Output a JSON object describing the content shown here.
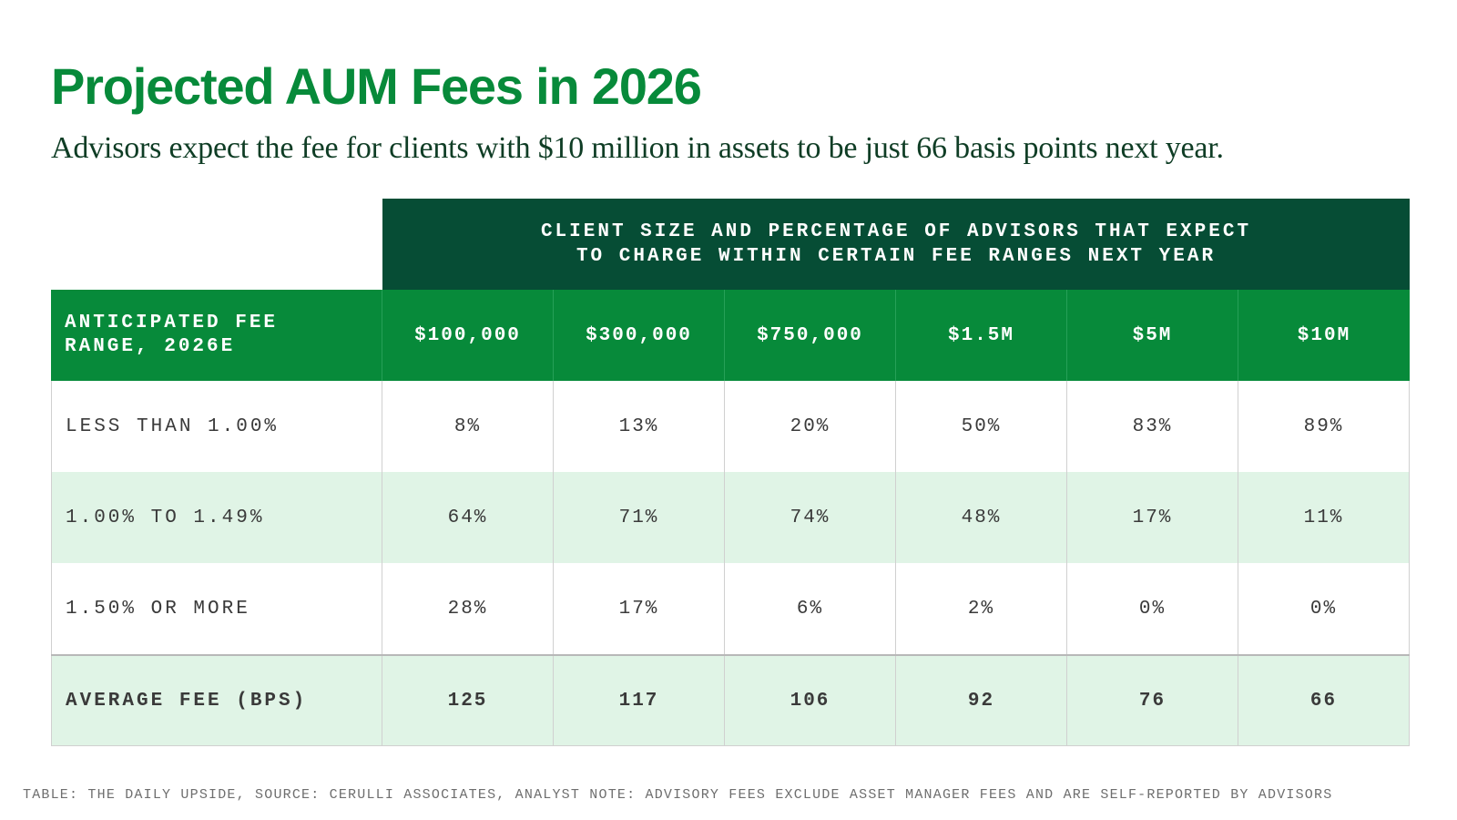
{
  "title": "Projected AUM Fees in 2026",
  "subtitle": "Advisors expect the fee for clients with $10 million in assets to be just 66 basis points next year.",
  "spanning_header": {
    "line1": "CLIENT SIZE AND PERCENTAGE OF ADVISORS THAT EXPECT",
    "line2": "TO CHARGE WITHIN CERTAIN FEE RANGES NEXT YEAR"
  },
  "row_header": {
    "line1": "ANTICIPATED FEE",
    "line2": "RANGE, 2026E"
  },
  "footer": "TABLE: THE DAILY UPSIDE, SOURCE: CERULLI ASSOCIATES, ANALYST NOTE: ADVISORY FEES EXCLUDE ASSET MANAGER FEES AND ARE SELF-REPORTED BY ADVISORS",
  "colors": {
    "title_green": "#078a3a",
    "dark_green_header": "#064d35",
    "green_header": "#078a3a",
    "alt_row": "#e0f4e6"
  },
  "chart_data": {
    "type": "table",
    "title": "Projected AUM Fees in 2026",
    "subtitle": "Advisors expect the fee for clients with $10 million in assets to be just 66 basis points next year.",
    "columns": [
      "$100,000",
      "$300,000",
      "$750,000",
      "$1.5M",
      "$5M",
      "$10M"
    ],
    "rows": [
      {
        "label": "LESS THAN 1.00%",
        "values": [
          "8%",
          "13%",
          "20%",
          "50%",
          "83%",
          "89%"
        ]
      },
      {
        "label": "1.00% TO 1.49%",
        "values": [
          "64%",
          "71%",
          "74%",
          "48%",
          "17%",
          "11%"
        ]
      },
      {
        "label": "1.50% OR MORE",
        "values": [
          "28%",
          "17%",
          "6%",
          "2%",
          "0%",
          "0%"
        ]
      },
      {
        "label": "AVERAGE FEE (BPS)",
        "values": [
          "125",
          "117",
          "106",
          "92",
          "76",
          "66"
        ]
      }
    ]
  }
}
